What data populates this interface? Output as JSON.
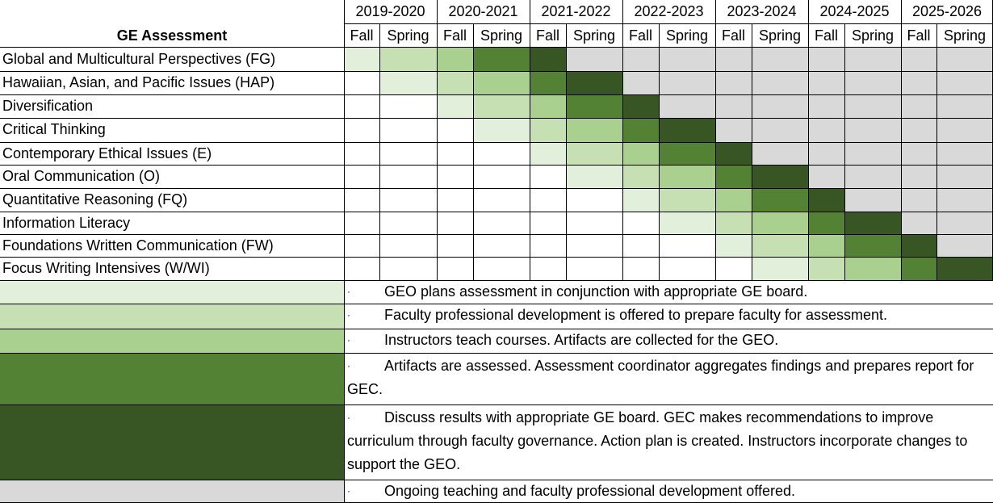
{
  "header": {
    "title": "GE Assessment",
    "years": [
      "2019-2020",
      "2020-2021",
      "2021-2022",
      "2022-2023",
      "2023-2024",
      "2024-2025",
      "2025-2026"
    ],
    "terms": [
      "Fall",
      "Spring"
    ]
  },
  "phase_colors": {
    "none": "#ffffff",
    "plan": "#e2efda",
    "develop": "#c6e0b4",
    "teach": "#a9d08e",
    "assess": "#548235",
    "discuss": "#375623",
    "ongoing": "#d9d9d9"
  },
  "rows": [
    {
      "label": "Global and Multicultural  Perspectives (FG)",
      "start": 0
    },
    {
      "label": "Hawaiian, Asian, and Pacific Issues (HAP)",
      "start": 1
    },
    {
      "label": "Diversification",
      "start": 2
    },
    {
      "label": "Critical Thinking",
      "start": 3
    },
    {
      "label": "Contemporary Ethical Issues (E)",
      "start": 4
    },
    {
      "label": "Oral Communication (O)",
      "start": 5
    },
    {
      "label": "Quantitative Reasoning (FQ)",
      "start": 6
    },
    {
      "label": "Information Literacy",
      "start": 7
    },
    {
      "label": "Foundations Written Communication (FW)",
      "start": 8
    },
    {
      "label": "Focus Writing Intensives (W/WI)",
      "start": 9
    }
  ],
  "legend": [
    {
      "phase": "plan",
      "bullet": "·",
      "text": "GEO plans assessment in conjunction with appropriate GE board."
    },
    {
      "phase": "develop",
      "bullet": "·",
      "text": "Faculty professional development is offered to prepare faculty for assessment."
    },
    {
      "phase": "teach",
      "bullet": "·",
      "text": "Instructors teach courses. Artifacts are collected for the GEO."
    },
    {
      "phase": "assess",
      "bullet": "·",
      "text": "Artifacts are assessed.  Assessment coordinator aggregates findings and prepares report for GEC."
    },
    {
      "phase": "discuss",
      "bullet": "·",
      "text": "Discuss results with appropriate GE board. GEC makes recommendations to improve curriculum through faculty governance. Action plan is created. Instructors incorporate changes to support the GEO."
    },
    {
      "phase": "ongoing",
      "bullet": "·",
      "text": "Ongoing teaching and faculty professional development offered."
    }
  ]
}
